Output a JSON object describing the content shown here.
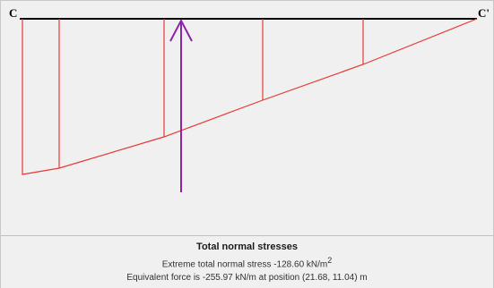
{
  "diagram": {
    "left_label": "C",
    "right_label": "C'",
    "baseline_color": "#000000",
    "stress_color": "#e53935",
    "force_arrow_color": "#8e24aa"
  },
  "info": {
    "title": "Total normal stresses",
    "line1_text": "Extreme total normal stress -128.60  kN/m",
    "line1_exponent": "2",
    "line2_text": "Equivalent force is -255.97 kN/m at position (21.68, 11.04) m"
  }
}
